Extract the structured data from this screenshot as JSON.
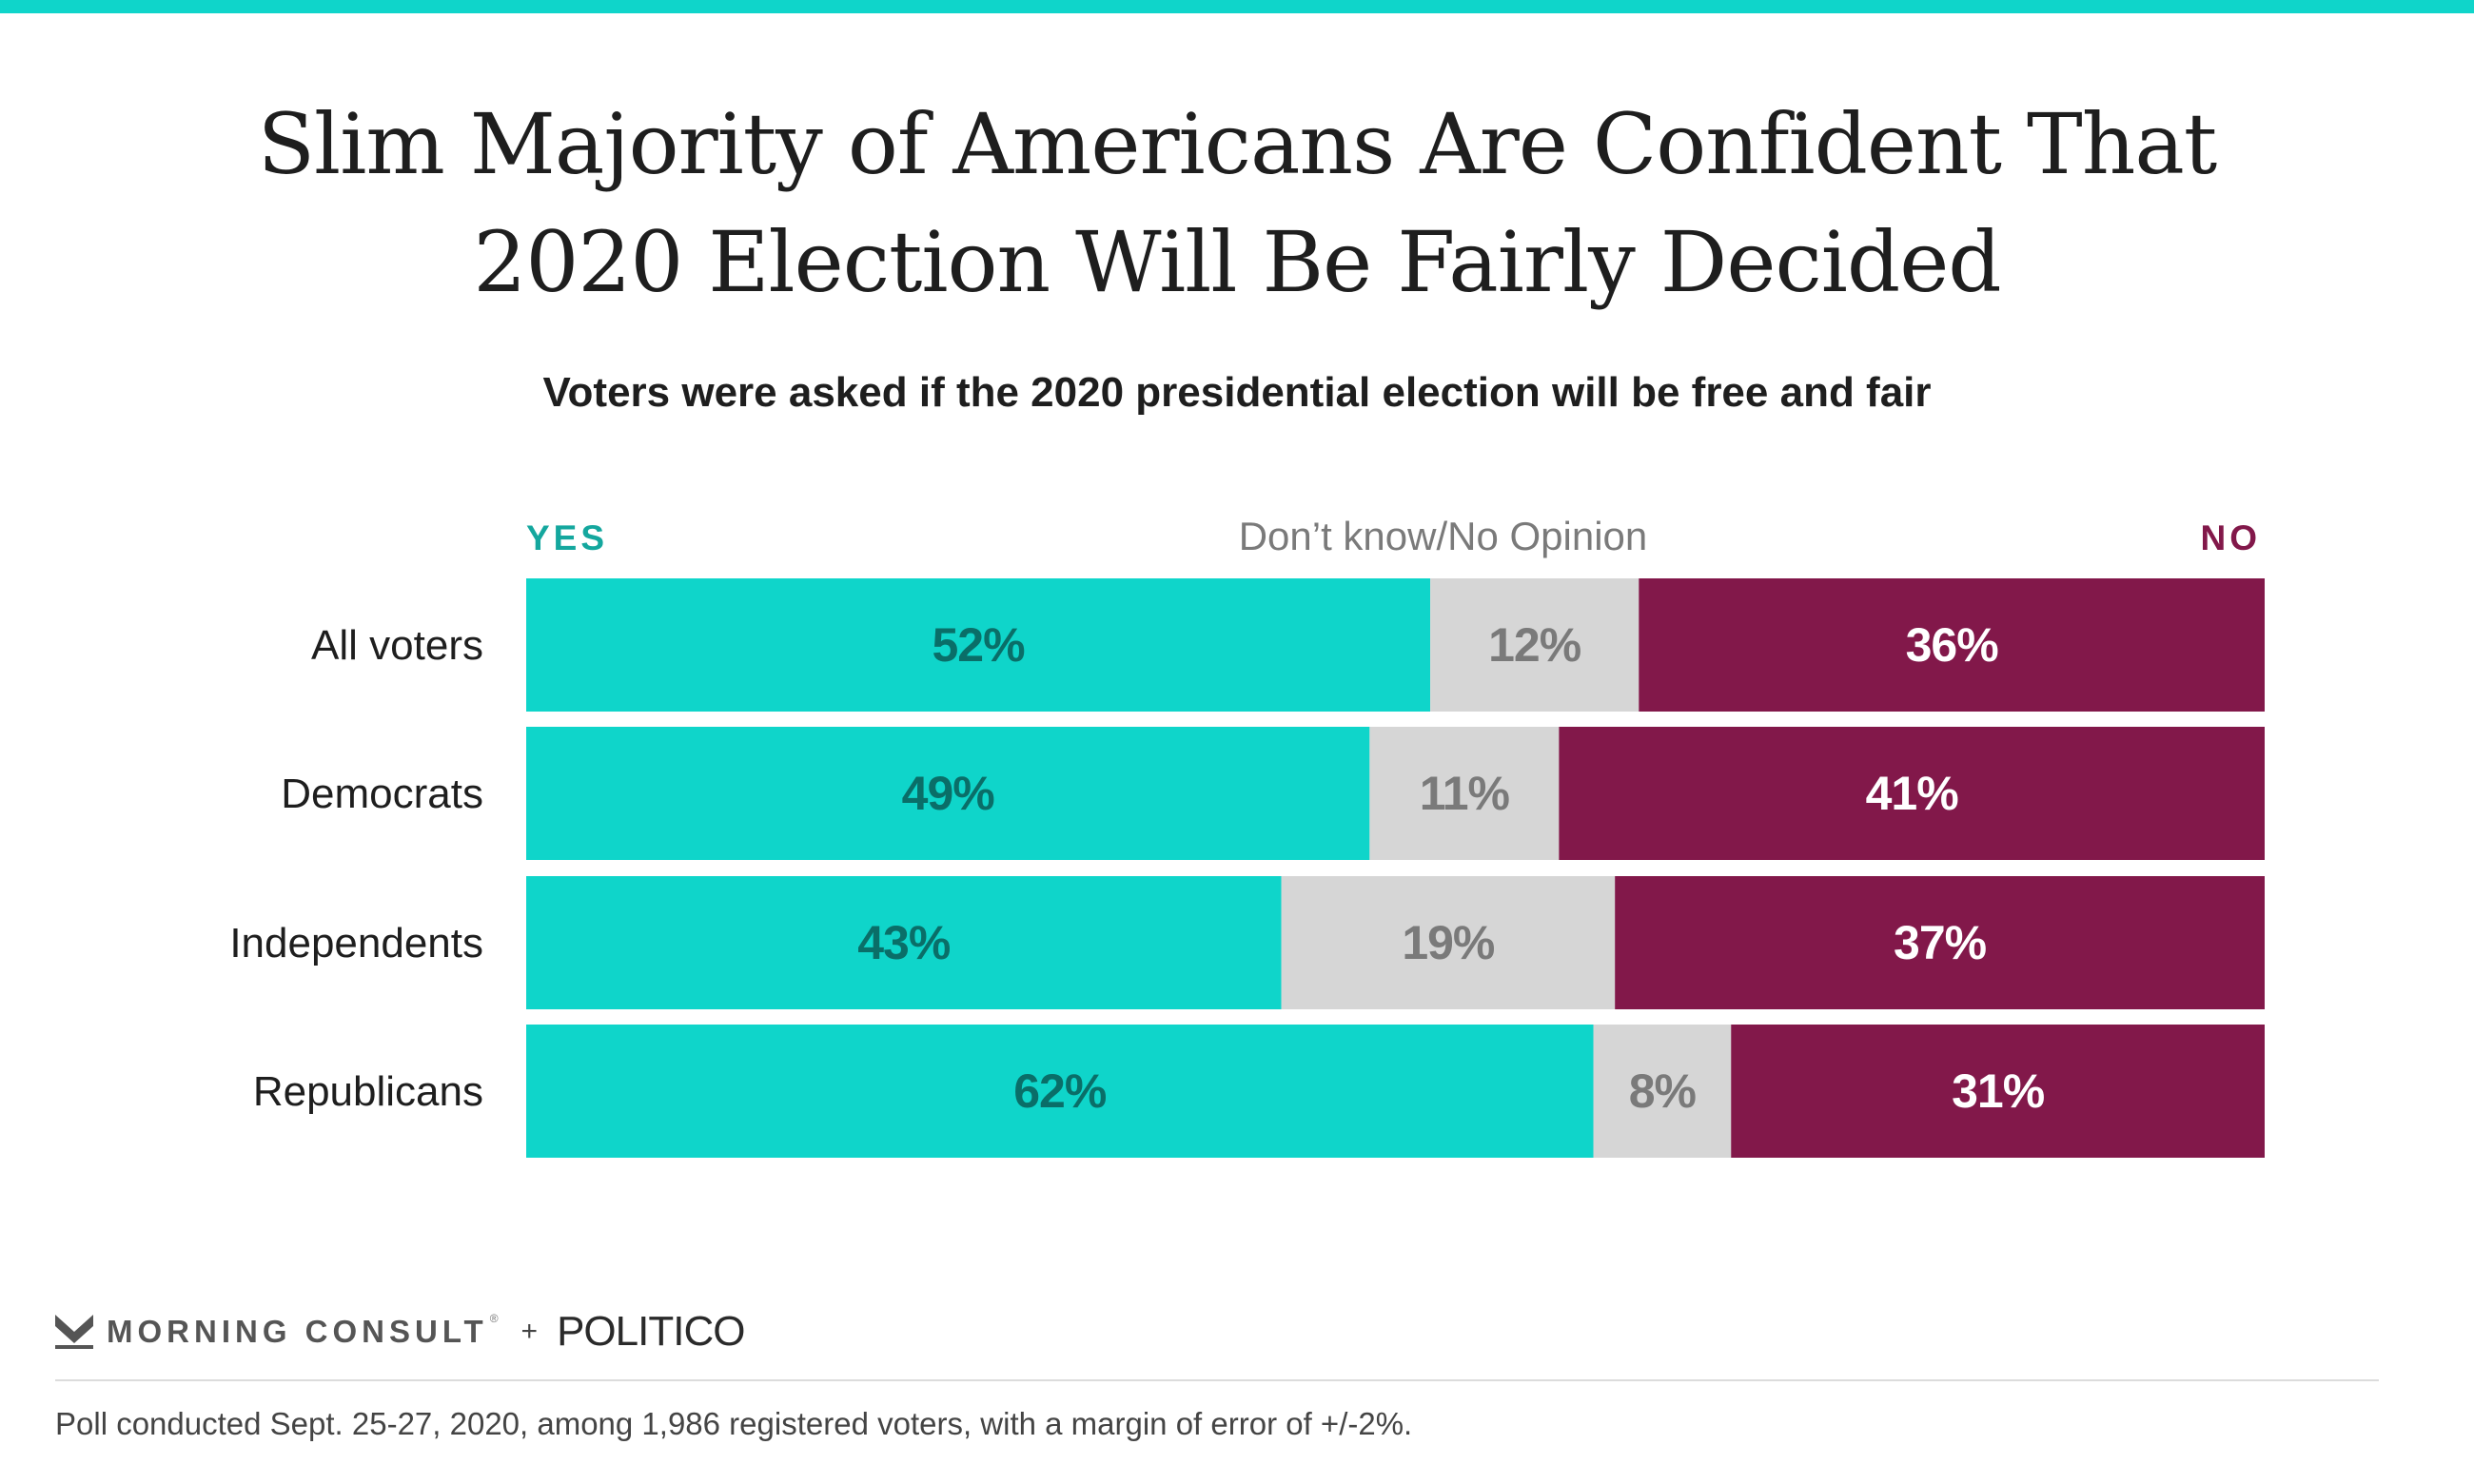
{
  "title": {
    "line1": "Slim Majority of Americans Are Confident That",
    "line2": "2020 Election Will Be Fairly Decided"
  },
  "subtitle": "Voters were asked if the 2020 presidential election will be free and fair",
  "colors": {
    "top_rule": "#0fd5ca",
    "yes": "#0fd5ca",
    "dont_know": "#d6d6d6",
    "no": "#82184a",
    "yes_text": "#0a6e68",
    "dont_know_text": "#7a7a7a",
    "no_text": "#ffffff",
    "yes_header": "#14a79e",
    "no_header": "#82184a",
    "dont_know_header": "#7a7a7a"
  },
  "chart_data": {
    "type": "bar",
    "orientation": "horizontal",
    "stacked": true,
    "categories": [
      "All voters",
      "Democrats",
      "Independents",
      "Republicans"
    ],
    "series": [
      {
        "name": "YES",
        "values": [
          52,
          49,
          43,
          62
        ]
      },
      {
        "name": "Don’t know/No Opinion",
        "values": [
          12,
          11,
          19,
          8
        ]
      },
      {
        "name": "NO",
        "values": [
          36,
          41,
          37,
          31
        ]
      }
    ],
    "value_labels": [
      [
        "52%",
        "12%",
        "36%"
      ],
      [
        "49%",
        "11%",
        "41%"
      ],
      [
        "43%",
        "19%",
        "37%"
      ],
      [
        "62%",
        "8%",
        "31%"
      ]
    ],
    "legend_placement": "top",
    "grid": false
  },
  "branding": {
    "left": "MORNING CONSULT",
    "registered": "®",
    "plus": "+",
    "right": "POLITICO"
  },
  "footnote": "Poll conducted Sept. 25-27, 2020, among 1,986 registered voters, with a margin of error of +/-2%."
}
